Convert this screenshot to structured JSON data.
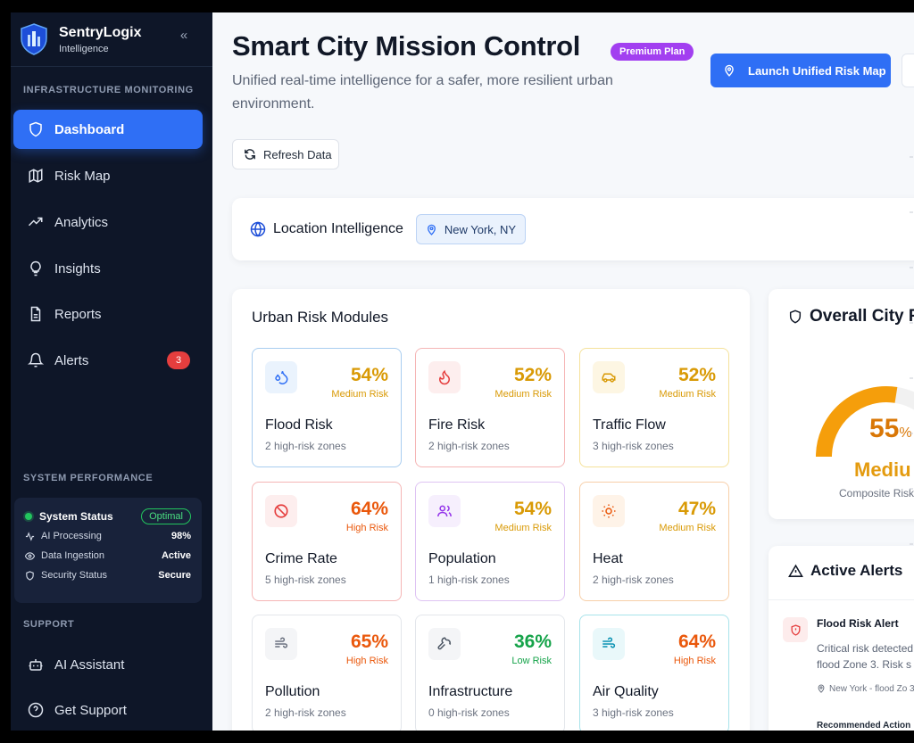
{
  "brand": {
    "name": "SentryLogix",
    "subtitle": "Intelligence"
  },
  "sidebar": {
    "section_monitoring": "INFRASTRUCTURE MONITORING",
    "items": [
      {
        "label": "Dashboard",
        "icon": "shield-icon",
        "active": true
      },
      {
        "label": "Risk Map",
        "icon": "map-icon"
      },
      {
        "label": "Analytics",
        "icon": "trending-up-icon"
      },
      {
        "label": "Insights",
        "icon": "lightbulb-icon"
      },
      {
        "label": "Reports",
        "icon": "file-text-icon"
      },
      {
        "label": "Alerts",
        "icon": "bell-icon",
        "badge": "3"
      }
    ],
    "section_performance": "SYSTEM PERFORMANCE",
    "performance": {
      "title": "System Status",
      "status": "Optimal",
      "rows": [
        {
          "label": "AI Processing",
          "value": "98%",
          "icon": "activity-icon"
        },
        {
          "label": "Data Ingestion",
          "value": "Active",
          "icon": "eye-icon"
        },
        {
          "label": "Security Status",
          "value": "Secure",
          "icon": "shield-icon"
        }
      ]
    },
    "section_support": "SUPPORT",
    "support_items": [
      {
        "label": "AI Assistant",
        "icon": "bot-icon"
      },
      {
        "label": "Get Support",
        "icon": "help-circle-icon"
      }
    ]
  },
  "header": {
    "title": "Smart City Mission Control",
    "plan_badge": "Premium Plan",
    "subtitle": "Unified real-time intelligence for a safer, more resilient urban environment.",
    "launch_label": "Launch Unified Risk Map",
    "refresh_label": "Refresh Data"
  },
  "location": {
    "title": "Location Intelligence",
    "city": "New York, NY"
  },
  "modules": {
    "title": "Urban Risk Modules",
    "tiles": [
      {
        "name": "Flood Risk",
        "pct": "54%",
        "level": "Medium Risk",
        "zones": "2 high-risk zones",
        "icon": "droplets-icon"
      },
      {
        "name": "Fire Risk",
        "pct": "52%",
        "level": "Medium Risk",
        "zones": "2 high-risk zones",
        "icon": "flame-icon"
      },
      {
        "name": "Traffic Flow",
        "pct": "52%",
        "level": "Medium Risk",
        "zones": "3 high-risk zones",
        "icon": "car-icon"
      },
      {
        "name": "Crime Rate",
        "pct": "64%",
        "level": "High Risk",
        "zones": "5 high-risk zones",
        "icon": "ban-icon"
      },
      {
        "name": "Population",
        "pct": "54%",
        "level": "Medium Risk",
        "zones": "1 high-risk zones",
        "icon": "users-icon"
      },
      {
        "name": "Heat",
        "pct": "47%",
        "level": "Medium Risk",
        "zones": "2 high-risk zones",
        "icon": "sun-icon"
      },
      {
        "name": "Pollution",
        "pct": "65%",
        "level": "High Risk",
        "zones": "2 high-risk zones",
        "icon": "wind-icon"
      },
      {
        "name": "Infrastructure",
        "pct": "36%",
        "level": "Low Risk",
        "zones": "0 high-risk zones",
        "icon": "wrench-icon"
      },
      {
        "name": "Air Quality",
        "pct": "64%",
        "level": "High Risk",
        "zones": "3 high-risk zones",
        "icon": "wind-icon"
      }
    ]
  },
  "overall": {
    "title": "Overall City R",
    "value": "55",
    "unit": "%",
    "score_fraction": 0.55,
    "level": "Mediu",
    "caption": "Composite Risk"
  },
  "alerts": {
    "title": "Active Alerts",
    "items": [
      {
        "title": "Flood Risk Alert",
        "description": "Critical risk detected in flood Zone 3. Risk s",
        "location": "New York - flood Zo 3",
        "recommended": "Recommended Action"
      }
    ]
  },
  "colors": {
    "accent": "#2f6ff5",
    "medium": "#d99a06",
    "high": "#ea580c",
    "low": "#16a34a",
    "gauge": "#f59e0b",
    "sidebar_bg": "#0e1628"
  }
}
